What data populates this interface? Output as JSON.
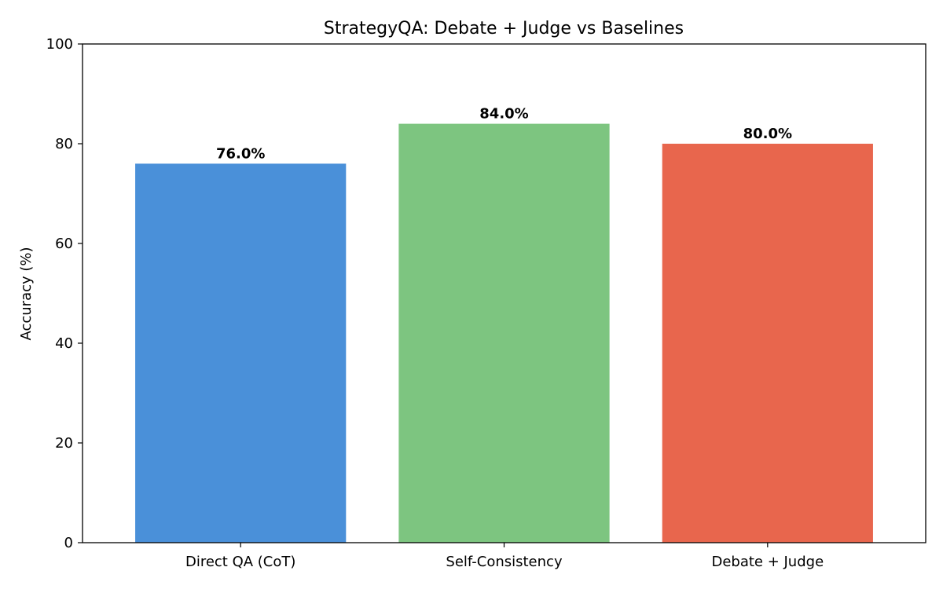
{
  "chart_data": {
    "type": "bar",
    "title": "StrategyQA: Debate + Judge vs Baselines",
    "xlabel": "",
    "ylabel": "Accuracy (%)",
    "ylim": [
      0,
      100
    ],
    "yticks": [
      0,
      20,
      40,
      60,
      80,
      100
    ],
    "categories": [
      "Direct QA (CoT)",
      "Self-Consistency",
      "Debate + Judge"
    ],
    "values": [
      76.0,
      84.0,
      80.0
    ],
    "data_labels": [
      "76.0%",
      "84.0%",
      "80.0%"
    ],
    "colors": [
      "#4a90d9",
      "#7dc580",
      "#e8664d"
    ],
    "grid": false,
    "legend": "none"
  }
}
